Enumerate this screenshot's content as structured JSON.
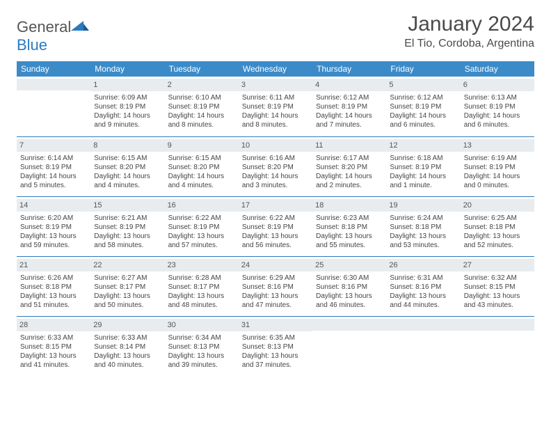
{
  "logo": {
    "word1": "General",
    "word2": "Blue"
  },
  "title": "January 2024",
  "location": "El Tio, Cordoba, Argentina",
  "colors": {
    "header_bg": "#3b8bc9",
    "divider": "#2a7abf",
    "daynum_bg": "#e8ecef",
    "text": "#444444"
  },
  "weekdays": [
    "Sunday",
    "Monday",
    "Tuesday",
    "Wednesday",
    "Thursday",
    "Friday",
    "Saturday"
  ],
  "weeks": [
    [
      {
        "n": "",
        "sr": "",
        "ss": "",
        "dl": ""
      },
      {
        "n": "1",
        "sr": "Sunrise: 6:09 AM",
        "ss": "Sunset: 8:19 PM",
        "dl": "Daylight: 14 hours and 9 minutes."
      },
      {
        "n": "2",
        "sr": "Sunrise: 6:10 AM",
        "ss": "Sunset: 8:19 PM",
        "dl": "Daylight: 14 hours and 8 minutes."
      },
      {
        "n": "3",
        "sr": "Sunrise: 6:11 AM",
        "ss": "Sunset: 8:19 PM",
        "dl": "Daylight: 14 hours and 8 minutes."
      },
      {
        "n": "4",
        "sr": "Sunrise: 6:12 AM",
        "ss": "Sunset: 8:19 PM",
        "dl": "Daylight: 14 hours and 7 minutes."
      },
      {
        "n": "5",
        "sr": "Sunrise: 6:12 AM",
        "ss": "Sunset: 8:19 PM",
        "dl": "Daylight: 14 hours and 6 minutes."
      },
      {
        "n": "6",
        "sr": "Sunrise: 6:13 AM",
        "ss": "Sunset: 8:19 PM",
        "dl": "Daylight: 14 hours and 6 minutes."
      }
    ],
    [
      {
        "n": "7",
        "sr": "Sunrise: 6:14 AM",
        "ss": "Sunset: 8:19 PM",
        "dl": "Daylight: 14 hours and 5 minutes."
      },
      {
        "n": "8",
        "sr": "Sunrise: 6:15 AM",
        "ss": "Sunset: 8:20 PM",
        "dl": "Daylight: 14 hours and 4 minutes."
      },
      {
        "n": "9",
        "sr": "Sunrise: 6:15 AM",
        "ss": "Sunset: 8:20 PM",
        "dl": "Daylight: 14 hours and 4 minutes."
      },
      {
        "n": "10",
        "sr": "Sunrise: 6:16 AM",
        "ss": "Sunset: 8:20 PM",
        "dl": "Daylight: 14 hours and 3 minutes."
      },
      {
        "n": "11",
        "sr": "Sunrise: 6:17 AM",
        "ss": "Sunset: 8:20 PM",
        "dl": "Daylight: 14 hours and 2 minutes."
      },
      {
        "n": "12",
        "sr": "Sunrise: 6:18 AM",
        "ss": "Sunset: 8:19 PM",
        "dl": "Daylight: 14 hours and 1 minute."
      },
      {
        "n": "13",
        "sr": "Sunrise: 6:19 AM",
        "ss": "Sunset: 8:19 PM",
        "dl": "Daylight: 14 hours and 0 minutes."
      }
    ],
    [
      {
        "n": "14",
        "sr": "Sunrise: 6:20 AM",
        "ss": "Sunset: 8:19 PM",
        "dl": "Daylight: 13 hours and 59 minutes."
      },
      {
        "n": "15",
        "sr": "Sunrise: 6:21 AM",
        "ss": "Sunset: 8:19 PM",
        "dl": "Daylight: 13 hours and 58 minutes."
      },
      {
        "n": "16",
        "sr": "Sunrise: 6:22 AM",
        "ss": "Sunset: 8:19 PM",
        "dl": "Daylight: 13 hours and 57 minutes."
      },
      {
        "n": "17",
        "sr": "Sunrise: 6:22 AM",
        "ss": "Sunset: 8:19 PM",
        "dl": "Daylight: 13 hours and 56 minutes."
      },
      {
        "n": "18",
        "sr": "Sunrise: 6:23 AM",
        "ss": "Sunset: 8:18 PM",
        "dl": "Daylight: 13 hours and 55 minutes."
      },
      {
        "n": "19",
        "sr": "Sunrise: 6:24 AM",
        "ss": "Sunset: 8:18 PM",
        "dl": "Daylight: 13 hours and 53 minutes."
      },
      {
        "n": "20",
        "sr": "Sunrise: 6:25 AM",
        "ss": "Sunset: 8:18 PM",
        "dl": "Daylight: 13 hours and 52 minutes."
      }
    ],
    [
      {
        "n": "21",
        "sr": "Sunrise: 6:26 AM",
        "ss": "Sunset: 8:18 PM",
        "dl": "Daylight: 13 hours and 51 minutes."
      },
      {
        "n": "22",
        "sr": "Sunrise: 6:27 AM",
        "ss": "Sunset: 8:17 PM",
        "dl": "Daylight: 13 hours and 50 minutes."
      },
      {
        "n": "23",
        "sr": "Sunrise: 6:28 AM",
        "ss": "Sunset: 8:17 PM",
        "dl": "Daylight: 13 hours and 48 minutes."
      },
      {
        "n": "24",
        "sr": "Sunrise: 6:29 AM",
        "ss": "Sunset: 8:16 PM",
        "dl": "Daylight: 13 hours and 47 minutes."
      },
      {
        "n": "25",
        "sr": "Sunrise: 6:30 AM",
        "ss": "Sunset: 8:16 PM",
        "dl": "Daylight: 13 hours and 46 minutes."
      },
      {
        "n": "26",
        "sr": "Sunrise: 6:31 AM",
        "ss": "Sunset: 8:16 PM",
        "dl": "Daylight: 13 hours and 44 minutes."
      },
      {
        "n": "27",
        "sr": "Sunrise: 6:32 AM",
        "ss": "Sunset: 8:15 PM",
        "dl": "Daylight: 13 hours and 43 minutes."
      }
    ],
    [
      {
        "n": "28",
        "sr": "Sunrise: 6:33 AM",
        "ss": "Sunset: 8:15 PM",
        "dl": "Daylight: 13 hours and 41 minutes."
      },
      {
        "n": "29",
        "sr": "Sunrise: 6:33 AM",
        "ss": "Sunset: 8:14 PM",
        "dl": "Daylight: 13 hours and 40 minutes."
      },
      {
        "n": "30",
        "sr": "Sunrise: 6:34 AM",
        "ss": "Sunset: 8:13 PM",
        "dl": "Daylight: 13 hours and 39 minutes."
      },
      {
        "n": "31",
        "sr": "Sunrise: 6:35 AM",
        "ss": "Sunset: 8:13 PM",
        "dl": "Daylight: 13 hours and 37 minutes."
      },
      {
        "n": "",
        "sr": "",
        "ss": "",
        "dl": ""
      },
      {
        "n": "",
        "sr": "",
        "ss": "",
        "dl": ""
      },
      {
        "n": "",
        "sr": "",
        "ss": "",
        "dl": ""
      }
    ]
  ]
}
